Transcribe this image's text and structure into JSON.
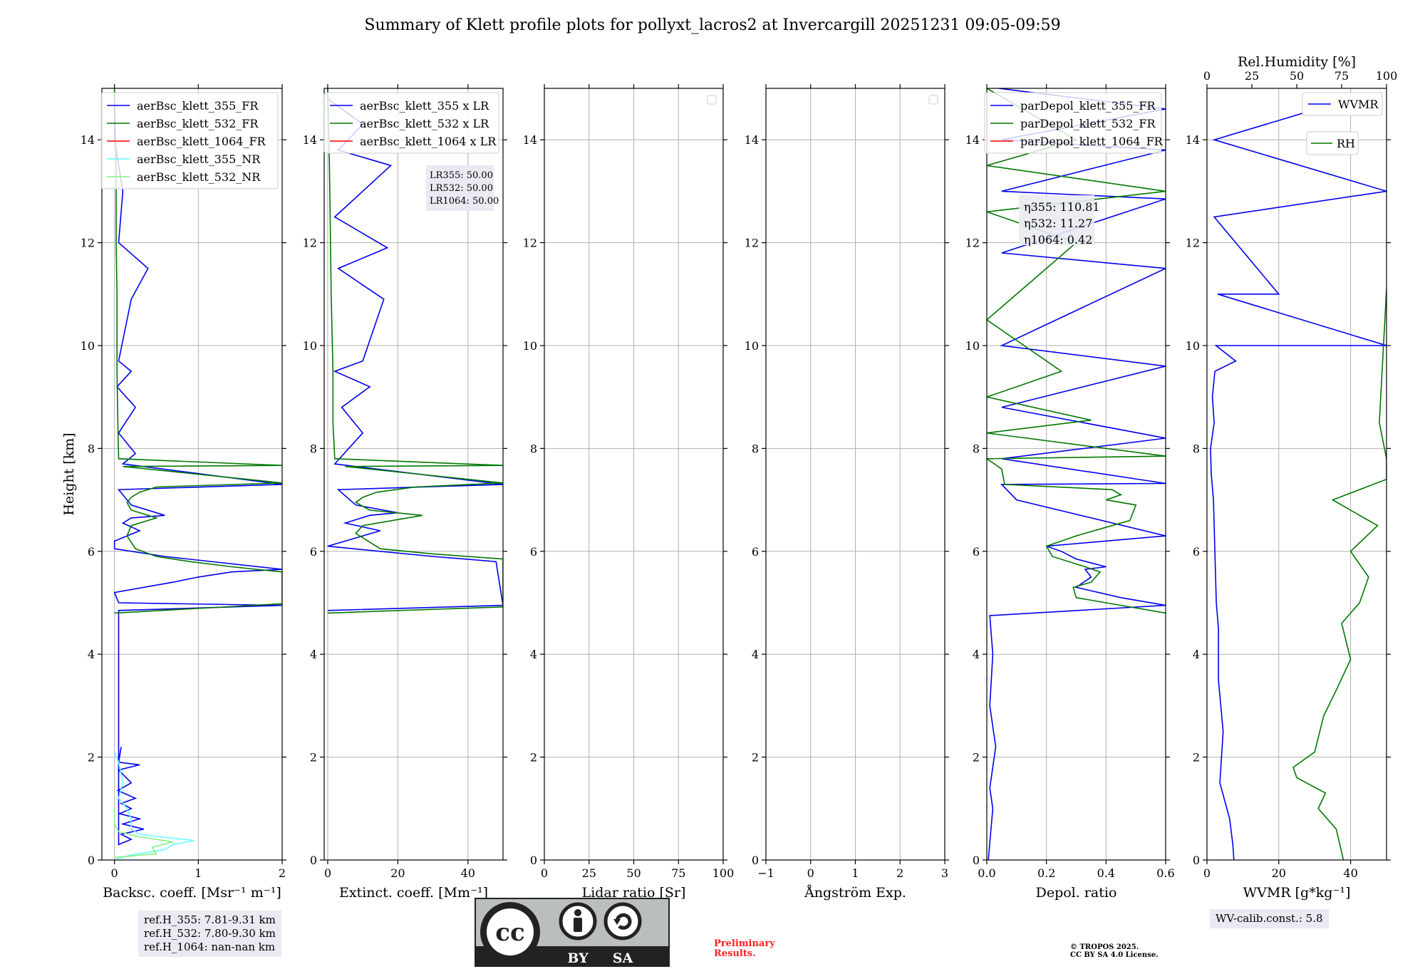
{
  "title": "Summary of Klett profile plots for pollyxt_lacros2 at Invercargill 20251231 09:05-09:59",
  "colors": {
    "c355": "#0000ee",
    "c532": "#007700",
    "c1064": "#ff0000",
    "c355nr": "#66ffff",
    "c532nr": "#88ee88"
  },
  "chart_data": [
    {
      "type": "line",
      "name": "backscatter",
      "xlabel": "Backsc. coeff. [Msr⁻¹ m⁻¹]",
      "ylabel": "Height [km]",
      "xlim": [
        -0.15,
        2
      ],
      "ylim": [
        0,
        15
      ],
      "xticks": [
        0,
        1,
        2
      ],
      "xtick_labels": [
        "0",
        "1",
        "2"
      ],
      "yticks": [
        0,
        2,
        4,
        6,
        8,
        10,
        12,
        14
      ],
      "ytick_labels": [
        "0",
        "2",
        "4",
        "6",
        "8",
        "10",
        "12",
        "14"
      ],
      "grid": true,
      "legend_position": "top-right",
      "legend": [
        "aerBsc_klett_355_FR",
        "aerBsc_klett_532_FR",
        "aerBsc_klett_1064_FR",
        "aerBsc_klett_355_NR",
        "aerBsc_klett_532_NR"
      ],
      "series": [
        {
          "name": "aerBsc_klett_355_FR",
          "color": "#0000ee",
          "x": [
            0.08,
            0.05,
            0.3,
            0.05,
            0.2,
            0.04,
            0.25,
            0.08,
            0.2,
            0.06,
            0.3,
            0.1,
            0.35,
            0.08,
            0.2,
            0.05,
            0.05,
            2.0,
            0.05,
            0.0,
            0.7,
            1.0,
            1.4,
            2.0,
            0.6,
            0.0,
            0.0,
            0.3,
            0.1,
            0.2,
            0.6,
            0.2,
            0.05,
            2.0,
            0.1,
            0.25,
            0.05,
            0.25,
            0.03,
            0.2,
            0.05,
            0.2,
            0.4,
            0.05,
            0.1,
            0.0,
            0.0,
            0.0
          ],
          "y": [
            2.2,
            1.9,
            1.85,
            1.75,
            1.5,
            1.35,
            1.2,
            1.1,
            1.0,
            0.9,
            0.8,
            0.7,
            0.6,
            0.5,
            0.4,
            0.3,
            4.85,
            4.95,
            5.0,
            5.2,
            5.4,
            5.5,
            5.6,
            5.65,
            5.9,
            6.05,
            6.2,
            6.4,
            6.55,
            6.65,
            6.7,
            6.9,
            7.2,
            7.3,
            7.7,
            7.9,
            8.3,
            8.8,
            9.2,
            9.5,
            9.7,
            10.9,
            11.5,
            12.0,
            13.0,
            14.0,
            14.5,
            15.0
          ]
        },
        {
          "name": "aerBsc_klett_532_FR",
          "color": "#007700",
          "x": [
            0.0,
            2.0,
            2.0,
            1.4,
            0.9,
            0.5,
            0.25,
            0.15,
            0.2,
            0.5,
            0.2,
            0.15,
            0.2,
            0.3,
            0.5,
            2.0,
            0.1,
            2.0,
            0.05,
            0.04,
            0.03,
            0.03,
            0.02,
            0.02,
            0.0
          ],
          "y": [
            4.8,
            4.98,
            5.6,
            5.7,
            5.8,
            5.9,
            6.05,
            6.3,
            6.5,
            6.65,
            6.8,
            6.95,
            7.05,
            7.15,
            7.25,
            7.33,
            7.65,
            7.67,
            7.8,
            8.5,
            9.5,
            11.0,
            12.0,
            13.5,
            15.0
          ]
        },
        {
          "name": "aerBsc_klett_355_NR",
          "color": "#66ffff",
          "x": [
            0.0,
            0.05,
            0.1,
            0.05,
            0.15,
            0.2,
            0.2,
            0.3,
            0.55,
            0.95,
            0.7,
            0.6,
            0.2,
            0.0
          ],
          "y": [
            2.1,
            1.9,
            1.5,
            1.2,
            1.0,
            0.8,
            0.6,
            0.5,
            0.45,
            0.38,
            0.3,
            0.2,
            0.1,
            0.0
          ]
        },
        {
          "name": "aerBsc_klett_532_NR",
          "color": "#88ee88",
          "x": [
            0.0,
            0.0,
            0.05,
            0.3,
            0.7,
            0.45,
            0.5,
            0.0
          ],
          "y": [
            1.0,
            0.7,
            0.55,
            0.45,
            0.35,
            0.25,
            0.12,
            0.05
          ]
        }
      ],
      "annotation": [
        "ref.H_355: 7.81-9.31 km",
        "ref.H_532: 7.80-9.30 km",
        "ref.H_1064: nan-nan km"
      ]
    },
    {
      "type": "line",
      "name": "extinction",
      "xlabel": "Extinct. coeff. [Mm⁻¹]",
      "xlim": [
        -1,
        50
      ],
      "ylim": [
        0,
        15
      ],
      "xticks": [
        0,
        20,
        40
      ],
      "xtick_labels": [
        "0",
        "20",
        "40"
      ],
      "yticks": [
        0,
        2,
        4,
        6,
        8,
        10,
        12,
        14
      ],
      "ytick_labels": [
        "0",
        "2",
        "4",
        "6",
        "8",
        "10",
        "12",
        "14"
      ],
      "grid": true,
      "legend_position": "top-right",
      "legend": [
        "aerBsc_klett_355 x LR",
        "aerBsc_klett_532 x LR",
        "aerBsc_klett_1064 x LR"
      ],
      "series": [
        {
          "name": "aerBsc_klett_355 x LR",
          "color": "#0000ee",
          "x": [
            0.0,
            50,
            48,
            30,
            0.0,
            15,
            5,
            12,
            20,
            8,
            3,
            50,
            2,
            10,
            4,
            12,
            2,
            10,
            16,
            3,
            17,
            2,
            18,
            3,
            10,
            0.0,
            0.0
          ],
          "y": [
            4.85,
            4.95,
            5.8,
            5.9,
            6.1,
            6.4,
            6.55,
            6.7,
            6.75,
            6.9,
            7.2,
            7.3,
            7.7,
            8.3,
            8.8,
            9.2,
            9.5,
            9.7,
            10.9,
            11.5,
            11.9,
            12.5,
            13.5,
            13.8,
            14.3,
            14.8,
            15.0
          ]
        },
        {
          "name": "aerBsc_klett_532 x LR",
          "color": "#007700",
          "x": [
            0.0,
            50,
            50,
            30,
            15,
            8,
            10,
            27,
            12,
            8,
            10,
            14,
            25,
            50,
            5,
            50,
            2,
            1.5,
            1.5,
            1,
            0.5,
            0.0
          ],
          "y": [
            4.8,
            4.92,
            5.85,
            5.95,
            6.05,
            6.35,
            6.5,
            6.7,
            6.8,
            6.95,
            7.05,
            7.15,
            7.25,
            7.33,
            7.65,
            7.67,
            7.8,
            8.5,
            9.5,
            11.0,
            13.5,
            15.0
          ]
        }
      ],
      "annotation": [
        "LR355: 50.00",
        "LR532: 50.00",
        "LR1064: 50.00"
      ]
    },
    {
      "type": "line",
      "name": "lidar-ratio",
      "xlabel": "Lidar ratio [Sr]",
      "xlim": [
        0,
        100
      ],
      "ylim": [
        0,
        15
      ],
      "xticks": [
        0,
        25,
        50,
        75,
        100
      ],
      "xtick_labels": [
        "0",
        "25",
        "50",
        "75",
        "100"
      ],
      "yticks": [
        0,
        2,
        4,
        6,
        8,
        10,
        12,
        14
      ],
      "ytick_labels": [
        "0",
        "2",
        "4",
        "6",
        "8",
        "10",
        "12",
        "14"
      ],
      "grid": true,
      "series": []
    },
    {
      "type": "line",
      "name": "angstrom",
      "xlabel": "Ångström Exp.",
      "xlim": [
        -1,
        3
      ],
      "ylim": [
        0,
        15
      ],
      "xticks": [
        -1,
        0,
        1,
        2,
        3
      ],
      "xtick_labels": [
        "−1",
        "0",
        "1",
        "2",
        "3"
      ],
      "yticks": [
        0,
        2,
        4,
        6,
        8,
        10,
        12,
        14
      ],
      "ytick_labels": [
        "0",
        "2",
        "4",
        "6",
        "8",
        "10",
        "12",
        "14"
      ],
      "grid": true,
      "series": []
    },
    {
      "type": "line",
      "name": "depol",
      "xlabel": "Depol. ratio",
      "xlim": [
        0,
        0.6
      ],
      "ylim": [
        0,
        15
      ],
      "xticks": [
        0,
        0.2,
        0.4,
        0.6
      ],
      "xtick_labels": [
        "0.0",
        "0.2",
        "0.4",
        "0.6"
      ],
      "yticks": [
        0,
        2,
        4,
        6,
        8,
        10,
        12,
        14
      ],
      "ytick_labels": [
        "0",
        "2",
        "4",
        "6",
        "8",
        "10",
        "12",
        "14"
      ],
      "grid": true,
      "legend_position": "top-right",
      "legend": [
        "parDepol_klett_355_FR",
        "parDepol_klett_532_FR",
        "parDepol_klett_1064_FR"
      ],
      "series": [
        {
          "name": "parDepol_klett_355_FR",
          "color": "#0000ee",
          "x": [
            0.005,
            0.02,
            0.01,
            0.03,
            0.01,
            0.02,
            0.01,
            0.6,
            0.45,
            0.3,
            0.35,
            0.33,
            0.4,
            0.3,
            0.25,
            0.2,
            0.6,
            0.1,
            0.05,
            0.6,
            0.05,
            0.6,
            0.05,
            0.6,
            0.05,
            0.6,
            0.05,
            0.6,
            0.05,
            0.6,
            0.05,
            0.6,
            0.04
          ],
          "y": [
            0.0,
            1.0,
            1.4,
            2.2,
            3.0,
            4.0,
            4.75,
            4.95,
            5.1,
            5.3,
            5.5,
            5.65,
            5.7,
            5.85,
            6.0,
            6.1,
            6.3,
            7.0,
            7.3,
            7.32,
            7.8,
            8.2,
            8.8,
            9.6,
            10.0,
            11.5,
            11.8,
            12.85,
            13.0,
            13.8,
            14.0,
            14.6,
            15.0
          ]
        },
        {
          "name": "parDepol_klett_532_FR",
          "color": "#007700",
          "x": [
            0.6,
            0.4,
            0.3,
            0.29,
            0.35,
            0.38,
            0.33,
            0.22,
            0.2,
            0.3,
            0.42,
            0.48,
            0.5,
            0.4,
            0.45,
            0.42,
            0.06,
            0.05,
            0.0,
            0.6,
            0.0,
            0.35,
            0.0,
            0.25,
            0.0,
            0.3,
            0.0,
            0.6,
            0.0,
            0.3,
            0.0
          ],
          "y": [
            4.8,
            5.0,
            5.1,
            5.3,
            5.4,
            5.6,
            5.7,
            5.9,
            6.1,
            6.3,
            6.5,
            6.6,
            6.9,
            7.0,
            7.1,
            7.2,
            7.3,
            7.6,
            7.8,
            7.85,
            8.3,
            8.55,
            9.0,
            9.5,
            10.5,
            12.0,
            12.6,
            13.0,
            13.5,
            14.0,
            15.0
          ]
        }
      ],
      "annotation": [
        "η355: 110.81",
        "η532: 11.27",
        "η1064: 0.42"
      ]
    },
    {
      "type": "line",
      "name": "wvmr-rh",
      "xlabel": "WVMR [g*kg⁻¹]",
      "x2label": "Rel.Humidity [%]",
      "xlim": [
        0,
        50
      ],
      "x2lim": [
        0,
        100
      ],
      "ylim": [
        0,
        15
      ],
      "xticks": [
        0,
        20,
        40
      ],
      "xtick_labels": [
        "0",
        "20",
        "40"
      ],
      "x2ticks": [
        0,
        25,
        50,
        75,
        100
      ],
      "x2tick_labels": [
        "0",
        "25",
        "50",
        "75",
        "100"
      ],
      "yticks": [
        0,
        2,
        4,
        6,
        8,
        10,
        12,
        14
      ],
      "ytick_labels": [
        "0",
        "2",
        "4",
        "6",
        "8",
        "10",
        "12",
        "14"
      ],
      "grid": true,
      "legend_position": "top-right",
      "legend": [
        "WVMR",
        "RH"
      ],
      "series": [
        {
          "name": "WVMR",
          "color": "#0000ee",
          "axis": "x",
          "x": [
            7.5,
            7.2,
            6.3,
            3.6,
            4.5,
            3.2,
            3.2,
            2.6,
            2.2,
            1.8,
            1.2,
            1.0,
            2.0,
            1.5,
            2.2,
            8.0,
            2.5,
            50,
            3.0,
            20,
            2.0,
            50,
            2.0,
            45
          ],
          "y": [
            0.0,
            0.3,
            0.8,
            1.5,
            2.5,
            3.5,
            4.5,
            5.0,
            6.0,
            7.0,
            7.5,
            8.0,
            8.5,
            9.0,
            9.5,
            9.7,
            10.0,
            10.0,
            11.0,
            11.0,
            12.5,
            13.0,
            14.0,
            14.9
          ]
        },
        {
          "name": "RH",
          "color": "#007700",
          "axis": "x2",
          "x": [
            76,
            72,
            62,
            66,
            58,
            50,
            48,
            60,
            65,
            72,
            80,
            75,
            85,
            90,
            80,
            95,
            70,
            100,
            100,
            96,
            100
          ],
          "y": [
            0.0,
            0.6,
            1.0,
            1.3,
            1.45,
            1.6,
            1.8,
            2.1,
            2.8,
            3.3,
            3.9,
            4.6,
            5.0,
            5.5,
            6.0,
            6.5,
            7.0,
            7.4,
            7.8,
            8.5,
            11.1
          ]
        }
      ],
      "annotation": [
        "WV-calib.const.: 5.8"
      ]
    }
  ],
  "notes": {
    "refh": [
      "ref.H_355: 7.81-9.31 km",
      "ref.H_532: 7.80-9.30 km",
      "ref.H_1064: nan-nan km"
    ],
    "wvcalib": "WV-calib.const.: 5.8",
    "preliminary": [
      "Preliminary",
      "Results."
    ],
    "copyright": [
      "© TROPOS 2025.",
      "CC BY SA 4.0 License."
    ]
  },
  "cc_badge": {
    "by": "BY",
    "sa": "SA",
    "cc": "cc"
  }
}
